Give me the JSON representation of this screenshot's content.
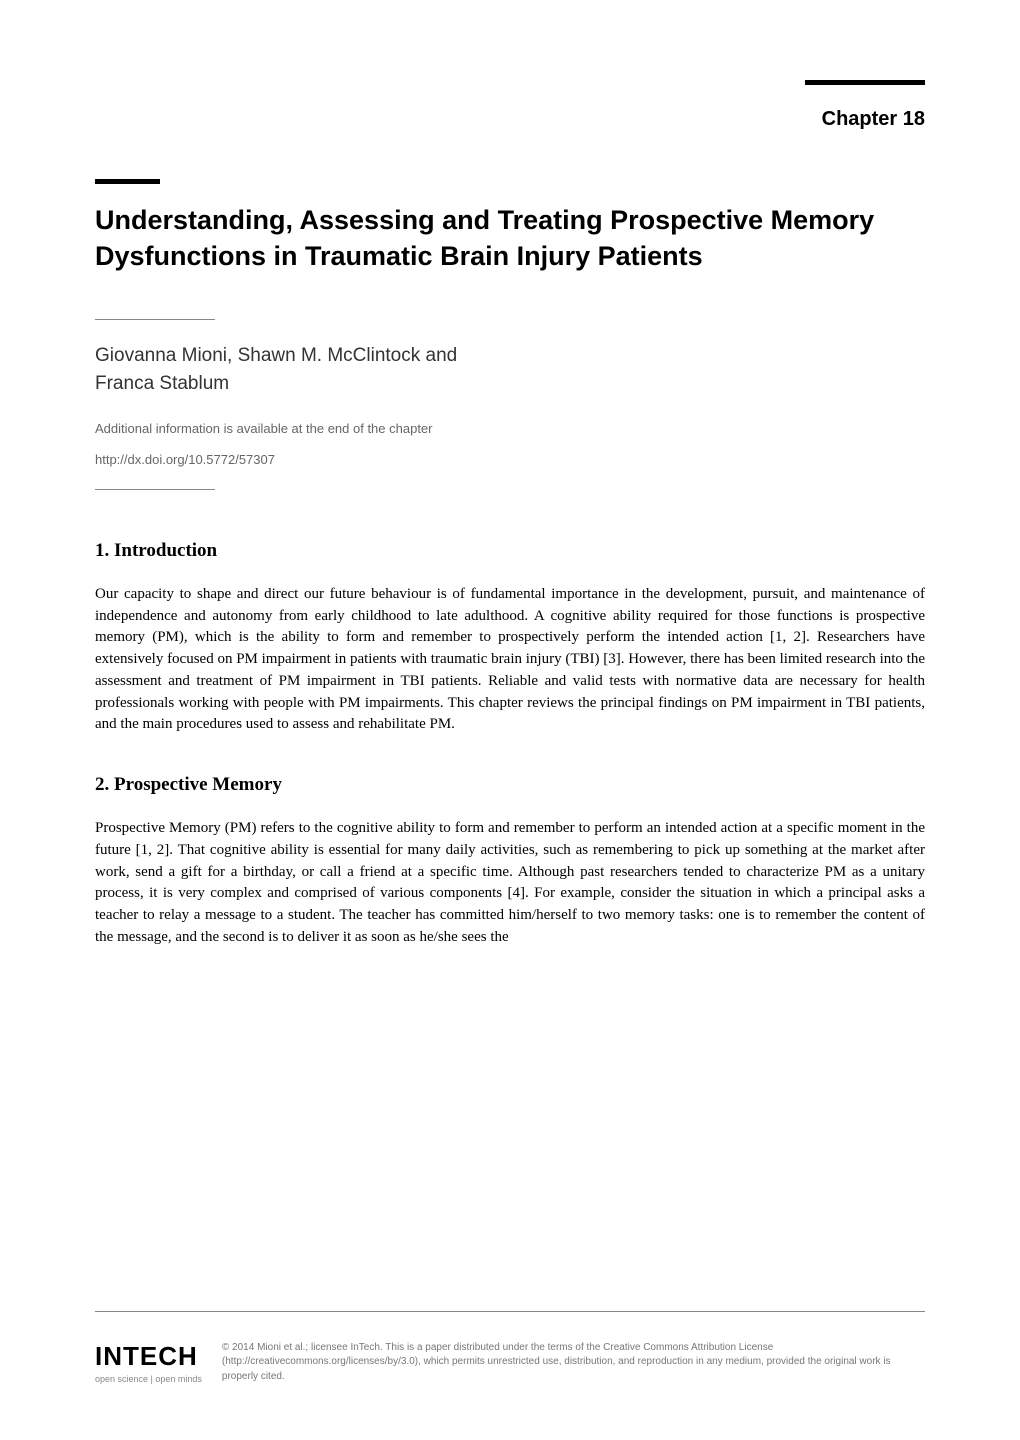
{
  "chapter_label": "Chapter 18",
  "title": "Understanding, Assessing and Treating Prospective Memory Dysfunctions in Traumatic Brain Injury Patients",
  "authors": "Giovanna Mioni, Shawn M. McClintock and\nFranca Stablum",
  "additional_info": "Additional information is available at the end of the chapter",
  "doi": "http://dx.doi.org/10.5772/57307",
  "sections": {
    "s1": {
      "heading": "1. Introduction",
      "body": "Our capacity to shape and direct our future behaviour is of fundamental importance in the development, pursuit, and maintenance of independence and autonomy from early childhood to late adulthood. A cognitive ability required for those functions is prospective memory (PM), which is the ability to form and remember to prospectively perform the intended action [1, 2]. Researchers have extensively focused on PM impairment in patients with traumatic brain injury (TBI) [3]. However, there has been limited research into the assessment and treatment of PM impairment in TBI patients. Reliable and valid tests with normative data are necessary for health professionals working with people with PM impairments. This chapter reviews the principal findings on PM impairment in TBI patients, and the main procedures used to assess and rehabilitate PM."
    },
    "s2": {
      "heading": "2. Prospective Memory",
      "body": "Prospective Memory (PM) refers to the cognitive ability to form and remember to perform an intended action at a specific moment in the future [1, 2]. That cognitive ability is essential for many daily activities, such as remembering to pick up something at the market after work, send a gift for a birthday, or call a friend at a specific time. Although past researchers tended to characterize PM as a unitary process, it is very complex and comprised of various components [4]. For example, consider the situation in which a principal asks a teacher to relay a message to a student. The teacher has committed him/herself to two memory tasks: one is to remember the content of the message, and the second is to deliver it as soon as he/she sees the"
    }
  },
  "logo": {
    "text": "INTECH",
    "tagline": "open science | open minds"
  },
  "copyright": "© 2014 Mioni et al.; licensee InTech. This is a paper distributed under the terms of the Creative Commons Attribution License (http://creativecommons.org/licenses/by/3.0), which permits unrestricted use, distribution, and reproduction in any medium, provided the original work is properly cited.",
  "colors": {
    "background": "#ffffff",
    "text_primary": "#000000",
    "text_secondary": "#666666",
    "text_muted": "#777777",
    "divider": "#888888"
  },
  "typography": {
    "chapter_label_size": 20,
    "title_size": 27,
    "authors_size": 19,
    "additional_info_size": 13,
    "section_heading_size": 19,
    "body_size": 15,
    "logo_size": 26,
    "tagline_size": 9,
    "copyright_size": 10
  }
}
